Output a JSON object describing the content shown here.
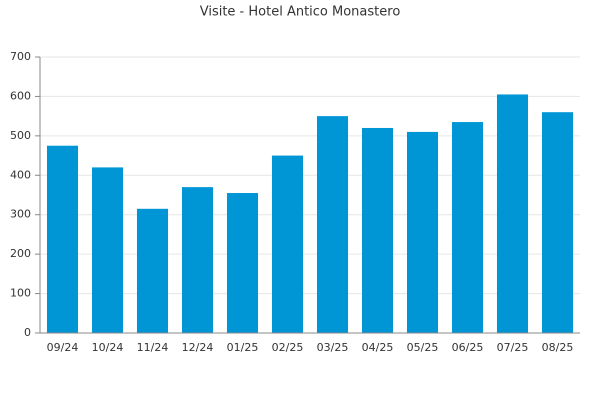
{
  "chart_data": {
    "type": "bar",
    "title": "Visite - Hotel Antico Monastero",
    "categories": [
      "09/24",
      "10/24",
      "11/24",
      "12/24",
      "01/25",
      "02/25",
      "03/25",
      "04/25",
      "05/25",
      "06/25",
      "07/25",
      "08/25"
    ],
    "values": [
      475,
      420,
      315,
      370,
      355,
      450,
      550,
      520,
      510,
      535,
      605,
      560
    ],
    "color": "#0096d6",
    "ylim": [
      0,
      700
    ],
    "yticks": [
      0,
      100,
      200,
      300,
      400,
      500,
      600,
      700
    ],
    "grid": true
  }
}
